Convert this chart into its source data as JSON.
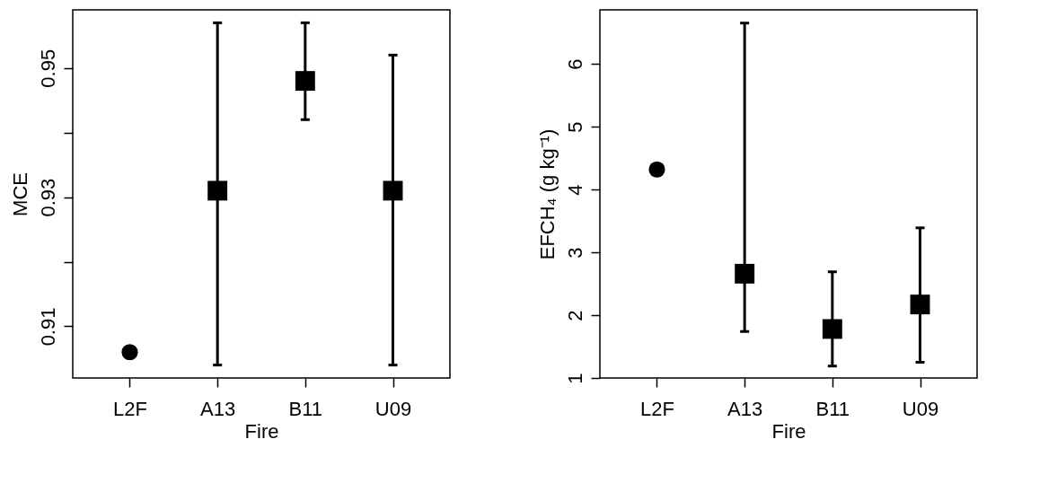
{
  "chart_data": [
    {
      "type": "scatter",
      "categories": [
        "L2F",
        "A13",
        "B11",
        "U09"
      ],
      "xlabel": "Fire",
      "ylabel": "MCE",
      "ylim": [
        0.902,
        0.959
      ],
      "yticks": [
        0.91,
        {
          "value": 0.92,
          "label": null
        },
        0.93,
        {
          "value": 0.94,
          "label": null
        },
        0.95
      ],
      "grid": false,
      "legend": false,
      "series": [
        {
          "color": "#000000",
          "marker": "circle",
          "x": [
            "L2F"
          ],
          "values": [
            0.906
          ],
          "errors": [
            null
          ]
        },
        {
          "color": "#000000",
          "marker": "square",
          "x": [
            "A13",
            "B11",
            "U09"
          ],
          "values": [
            0.931,
            0.948,
            0.931
          ],
          "errors": [
            [
              0.904,
              0.957
            ],
            [
              0.942,
              0.957
            ],
            [
              0.904,
              0.952
            ]
          ]
        }
      ]
    },
    {
      "type": "scatter",
      "categories": [
        "L2F",
        "A13",
        "B11",
        "U09"
      ],
      "xlabel": "Fire",
      "ylabel": "EFCH₄ (g kg⁻¹)",
      "ylim": [
        1,
        6.86
      ],
      "yticks": [
        1,
        2,
        3,
        4,
        5,
        6
      ],
      "grid": false,
      "legend": false,
      "series": [
        {
          "color": "#000000",
          "marker": "circle",
          "x": [
            "L2F"
          ],
          "values": [
            4.32
          ],
          "errors": [
            null
          ]
        },
        {
          "color": "#000000",
          "marker": "square",
          "x": [
            "A13",
            "B11",
            "U09"
          ],
          "values": [
            2.66,
            1.78,
            2.17
          ],
          "errors": [
            [
              1.74,
              6.65
            ],
            [
              1.19,
              2.69
            ],
            [
              1.25,
              3.39
            ]
          ]
        }
      ]
    }
  ]
}
